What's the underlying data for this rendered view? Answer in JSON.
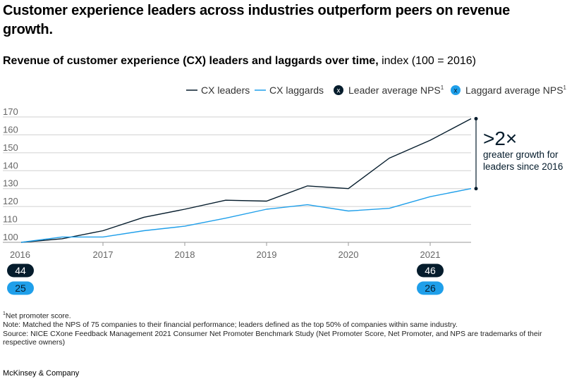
{
  "title": "Customer experience leaders across industries outperform peers on revenue growth.",
  "subtitle": {
    "bold": "Revenue of customer experience (CX) leaders and laggards over time,",
    "normal": " index (100 = 2016)"
  },
  "colors": {
    "leaders": "#051c2c",
    "laggards": "#1f9fea",
    "grid": "#d0d0d0",
    "axis_text": "#666666"
  },
  "legend": {
    "leaders_label": "CX leaders",
    "laggards_label": "CX laggards",
    "leader_nps_label": "Leader average NPS",
    "laggard_nps_label": "Laggard average NPS",
    "marker_glyph": "x",
    "footnote_mark": "1"
  },
  "chart_data": {
    "type": "line",
    "title": "Revenue of customer experience (CX) leaders and laggards over time",
    "ylabel": "index (100 = 2016)",
    "xlabel": "",
    "ylim": [
      100,
      170
    ],
    "yticks": [
      100,
      110,
      120,
      130,
      140,
      150,
      160,
      170
    ],
    "xlim": [
      2016,
      2021.5
    ],
    "xticks": [
      2016,
      2017,
      2018,
      2019,
      2020,
      2021
    ],
    "grid": true,
    "legend_position": "top-right",
    "series": [
      {
        "name": "CX leaders",
        "x": [
          2016,
          2016.5,
          2017,
          2017.5,
          2018,
          2018.5,
          2019,
          2019.5,
          2020,
          2020.5,
          2021,
          2021.5
        ],
        "values": [
          100,
          102,
          106.5,
          114,
          118.5,
          123.5,
          123,
          131.5,
          130,
          147,
          157,
          169
        ]
      },
      {
        "name": "CX laggards",
        "x": [
          2016,
          2016.5,
          2017,
          2017.5,
          2018,
          2018.5,
          2019,
          2019.5,
          2020,
          2020.5,
          2021,
          2021.5
        ],
        "values": [
          100,
          103,
          103,
          106.5,
          109,
          113.5,
          118.5,
          121,
          117.5,
          119,
          125.5,
          130
        ]
      }
    ],
    "nps": {
      "leader": [
        {
          "x": 2016,
          "value": "44"
        },
        {
          "x": 2021,
          "value": "46"
        }
      ],
      "laggard": [
        {
          "x": 2016,
          "value": "25"
        },
        {
          "x": 2021,
          "value": "26"
        }
      ]
    },
    "annotation": {
      "headline": ">2×",
      "line1": "greater growth for",
      "line2": "leaders since 2016",
      "from": 130,
      "to": 169
    }
  },
  "footnotes": {
    "nps_def_mark": "1",
    "nps_def": "Net promoter score.",
    "note": "Note: Matched the NPS of 75 companies to their financial performance; leaders defined as the top 50% of companies within same industry.",
    "source": "Source: NICE CXone Feedback Management 2021 Consumer Net Promoter Benchmark Study (Net Promoter Score, Net Promoter, and NPS are trademarks of their respective owners)"
  },
  "brand": "McKinsey & Company"
}
